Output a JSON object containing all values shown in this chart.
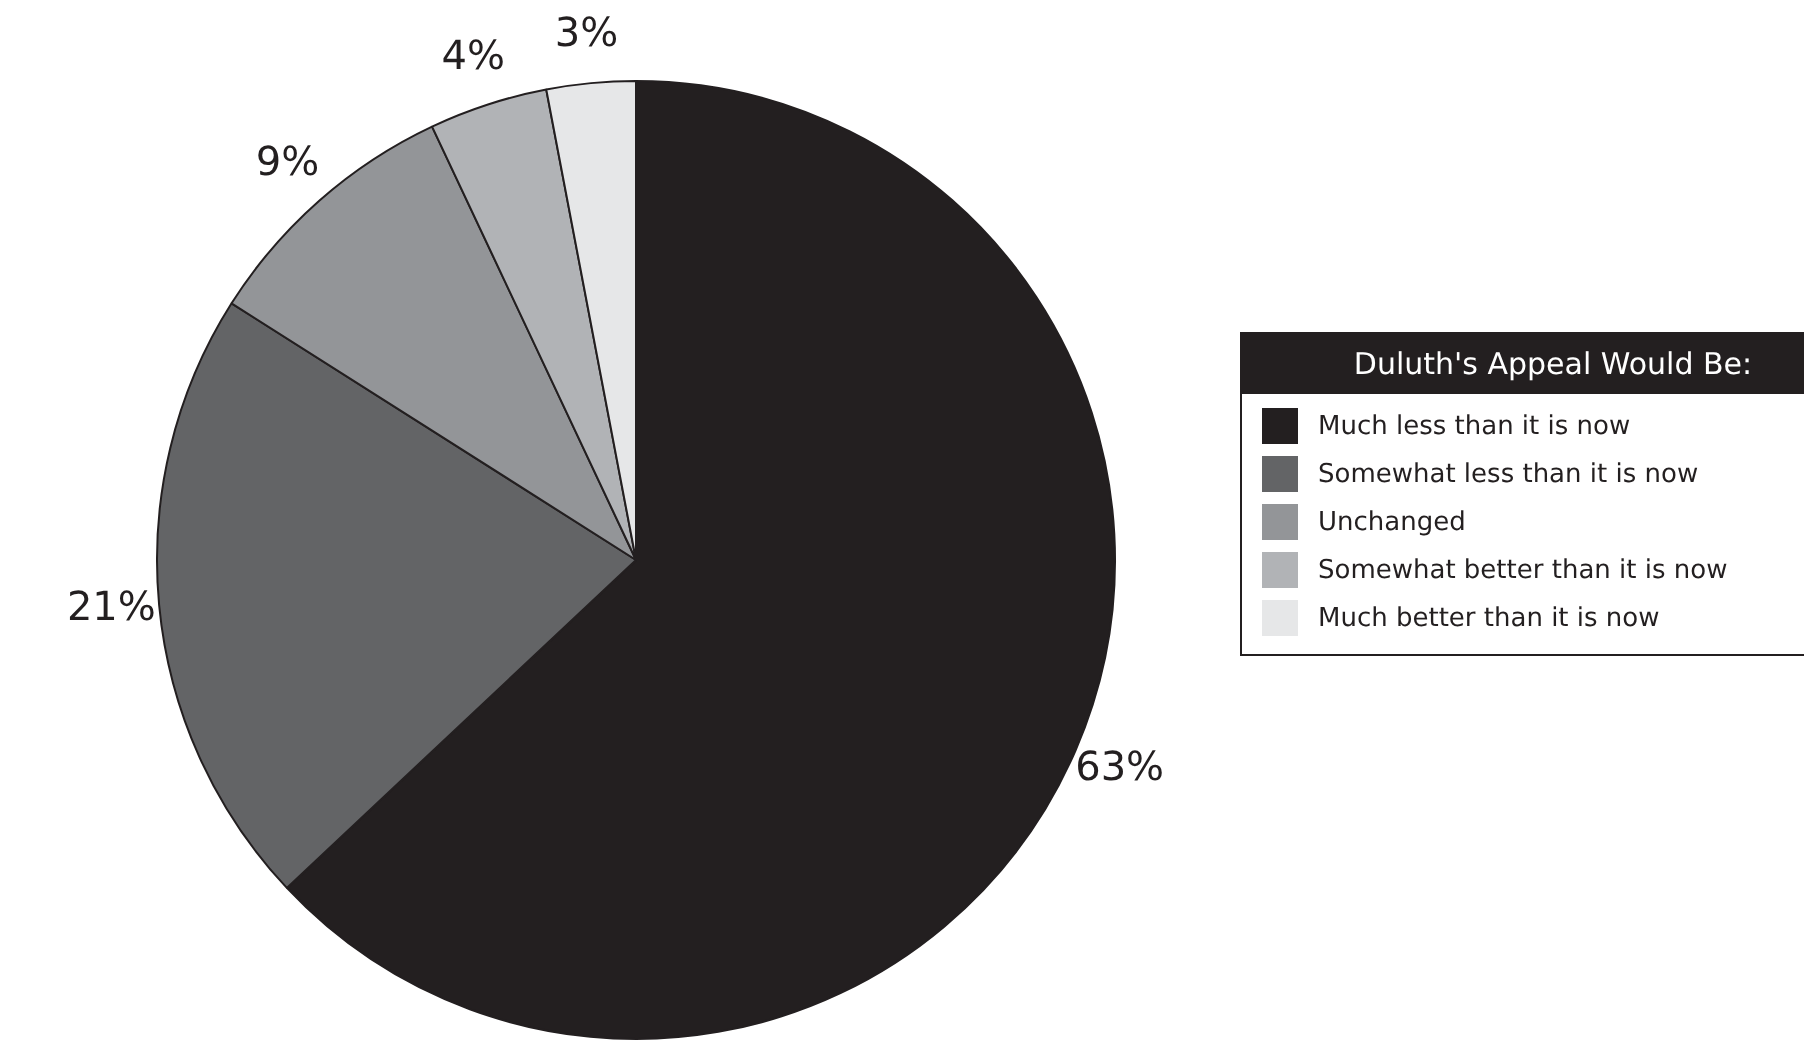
{
  "chart_data": {
    "type": "pie",
    "legend_title": "Duluth's Appeal Would Be:",
    "legend": "right",
    "categories": [
      "Much less than it is now",
      "Somewhat less than it is now",
      "Unchanged",
      "Somewhat better than it is now",
      "Much better than it is now"
    ],
    "values": [
      63,
      21,
      9,
      4,
      3
    ],
    "value_labels": [
      "63%",
      "21%",
      "9%",
      "4%",
      "3%"
    ],
    "colors": [
      "#231f20",
      "#636466",
      "#939598",
      "#b1b3b6",
      "#e6e7e8"
    ]
  }
}
